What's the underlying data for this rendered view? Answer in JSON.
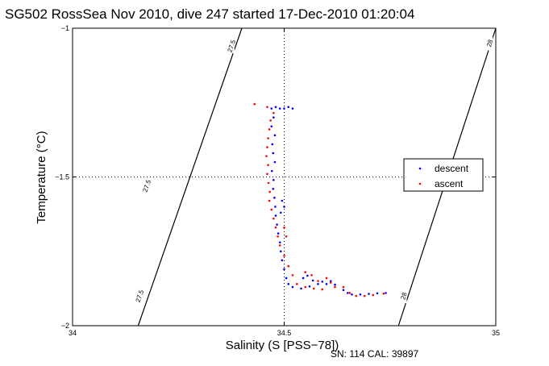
{
  "chart_data": {
    "type": "scatter",
    "title": "SG502 RossSea Nov 2010, dive 247 started 17-Dec-2010 01:20:04",
    "xlabel": "Salinity (S [PSS−78])",
    "ylabel": "Temperature (°C)",
    "xlim": [
      34,
      35
    ],
    "ylim": [
      -2,
      -1
    ],
    "x_ticks": [
      34,
      34.5,
      35
    ],
    "x_tick_labels": [
      "34",
      "34.5",
      "35"
    ],
    "y_ticks": [
      -2,
      -1.5,
      -1
    ],
    "y_tick_labels": [
      "−2",
      "−1.5",
      "−1"
    ],
    "grid": "dotted lines at 34.5 and -1.5",
    "legend_position": "right",
    "footer_text": "SN: 114  CAL: 39897",
    "contours": [
      {
        "label": "27.5",
        "x_at_top": 34.4,
        "x_at_bottom": 34.155,
        "label_positions": [
          {
            "x": 34.375,
            "y": -1.06
          },
          {
            "x": 34.175,
            "y": -1.53
          },
          {
            "x": 34.158,
            "y": -1.9
          }
        ]
      },
      {
        "label": "28",
        "x_at_top": 35.0,
        "x_at_bottom": 34.77,
        "label_positions": [
          {
            "x": 34.985,
            "y": -1.05
          },
          {
            "x": 34.782,
            "y": -1.9
          }
        ]
      }
    ],
    "series": [
      {
        "name": "descent",
        "color": "#0000ff",
        "points": [
          [
            34.47,
            -1.27
          ],
          [
            34.48,
            -1.265
          ],
          [
            34.49,
            -1.27
          ],
          [
            34.5,
            -1.27
          ],
          [
            34.51,
            -1.265
          ],
          [
            34.52,
            -1.27
          ],
          [
            34.475,
            -1.3
          ],
          [
            34.47,
            -1.33
          ],
          [
            34.478,
            -1.36
          ],
          [
            34.472,
            -1.39
          ],
          [
            34.474,
            -1.42
          ],
          [
            34.478,
            -1.45
          ],
          [
            34.471,
            -1.48
          ],
          [
            34.475,
            -1.51
          ],
          [
            34.474,
            -1.54
          ],
          [
            34.477,
            -1.57
          ],
          [
            34.479,
            -1.6
          ],
          [
            34.48,
            -1.63
          ],
          [
            34.483,
            -1.66
          ],
          [
            34.486,
            -1.69
          ],
          [
            34.49,
            -1.72
          ],
          [
            34.492,
            -1.75
          ],
          [
            34.495,
            -1.78
          ],
          [
            34.5,
            -1.81
          ],
          [
            34.505,
            -1.84
          ],
          [
            34.51,
            -1.86
          ],
          [
            34.52,
            -1.87
          ],
          [
            34.54,
            -1.875
          ],
          [
            34.56,
            -1.868
          ],
          [
            34.58,
            -1.86
          ],
          [
            34.6,
            -1.86
          ],
          [
            34.62,
            -1.862
          ],
          [
            34.64,
            -1.88
          ],
          [
            34.65,
            -1.89
          ],
          [
            34.66,
            -1.895
          ],
          [
            34.68,
            -1.895
          ],
          [
            34.7,
            -1.893
          ],
          [
            34.72,
            -1.891
          ],
          [
            34.74,
            -1.89
          ],
          [
            34.545,
            -1.84
          ],
          [
            34.555,
            -1.832
          ],
          [
            34.568,
            -1.848
          ],
          [
            34.59,
            -1.852
          ],
          [
            34.61,
            -1.85
          ],
          [
            34.5,
            -1.6
          ],
          [
            34.495,
            -1.58
          ],
          [
            34.492,
            -1.62
          ]
        ]
      },
      {
        "name": "ascent",
        "color": "#ff0000",
        "points": [
          [
            34.43,
            -1.255
          ],
          [
            34.46,
            -1.265
          ],
          [
            34.475,
            -1.285
          ],
          [
            34.468,
            -1.31
          ],
          [
            34.465,
            -1.34
          ],
          [
            34.462,
            -1.37
          ],
          [
            34.46,
            -1.4
          ],
          [
            34.458,
            -1.43
          ],
          [
            34.462,
            -1.46
          ],
          [
            34.46,
            -1.49
          ],
          [
            34.463,
            -1.52
          ],
          [
            34.466,
            -1.55
          ],
          [
            34.465,
            -1.58
          ],
          [
            34.47,
            -1.61
          ],
          [
            34.475,
            -1.64
          ],
          [
            34.48,
            -1.67
          ],
          [
            34.485,
            -1.7
          ],
          [
            34.49,
            -1.73
          ],
          [
            34.5,
            -1.765
          ],
          [
            34.51,
            -1.8
          ],
          [
            34.52,
            -1.83
          ],
          [
            34.53,
            -1.86
          ],
          [
            34.55,
            -1.87
          ],
          [
            34.57,
            -1.875
          ],
          [
            34.59,
            -1.878
          ],
          [
            34.62,
            -1.87
          ],
          [
            34.64,
            -1.87
          ],
          [
            34.655,
            -1.89
          ],
          [
            34.67,
            -1.9
          ],
          [
            34.69,
            -1.9
          ],
          [
            34.71,
            -1.897
          ],
          [
            34.735,
            -1.892
          ],
          [
            34.55,
            -1.82
          ],
          [
            34.565,
            -1.83
          ],
          [
            34.58,
            -1.85
          ],
          [
            34.6,
            -1.84
          ],
          [
            34.61,
            -1.855
          ],
          [
            34.5,
            -1.67
          ],
          [
            34.505,
            -1.7
          ]
        ]
      }
    ]
  }
}
